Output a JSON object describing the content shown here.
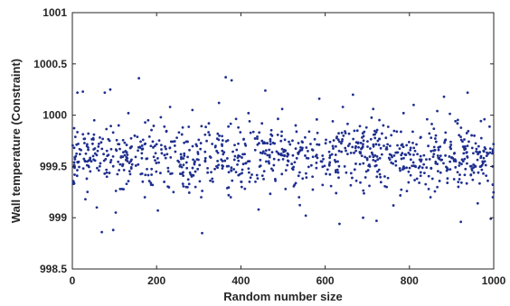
{
  "chart_data": {
    "type": "scatter",
    "title": "",
    "xlabel": "Random number size",
    "ylabel": "Wall temperature (Constraint)",
    "xlim": [
      0,
      1000
    ],
    "ylim": [
      998.5,
      1001
    ],
    "x_ticks": [
      0,
      200,
      400,
      600,
      800,
      1000
    ],
    "y_ticks": [
      998.5,
      999,
      999.5,
      1000,
      1000.5,
      1001
    ],
    "x_tick_labels": [
      "0",
      "200",
      "400",
      "600",
      "800",
      "1000"
    ],
    "y_tick_labels": [
      "998.5",
      "999",
      "999.5",
      "1000",
      "1000.5",
      "1001"
    ],
    "grid": false,
    "series": [
      {
        "marker_color": "#1f2f8f",
        "point_count": 1000,
        "distribution": "approximately uniform between 998.85 and 1000.35, concentrated 999.2–1000.0",
        "points": [
          [
            3,
            999.35
          ],
          [
            12,
            1000.22
          ],
          [
            18,
            999.62
          ],
          [
            25,
            1000.23
          ],
          [
            31,
            999.18
          ],
          [
            38,
            999.82
          ],
          [
            45,
            999.55
          ],
          [
            52,
            999.95
          ],
          [
            58,
            999.1
          ],
          [
            63,
            999.72
          ],
          [
            70,
            998.86
          ],
          [
            77,
            1000.22
          ],
          [
            82,
            999.4
          ],
          [
            90,
            1000.25
          ],
          [
            97,
            998.88
          ],
          [
            103,
            999.05
          ],
          [
            110,
            999.9
          ],
          [
            118,
            999.28
          ],
          [
            126,
            999.65
          ],
          [
            133,
            1000.02
          ],
          [
            140,
            999.48
          ],
          [
            148,
            999.8
          ],
          [
            158,
            1000.36
          ],
          [
            165,
            999.58
          ],
          [
            172,
            999.2
          ],
          [
            180,
            999.95
          ],
          [
            188,
            999.42
          ],
          [
            196,
            999.7
          ],
          [
            203,
            999.07
          ],
          [
            210,
            999.98
          ],
          [
            218,
            999.35
          ],
          [
            225,
            999.62
          ],
          [
            232,
            1000.08
          ],
          [
            240,
            999.25
          ],
          [
            248,
            999.78
          ],
          [
            255,
            999.5
          ],
          [
            262,
            999.88
          ],
          [
            270,
            999.3
          ],
          [
            278,
            999.66
          ],
          [
            285,
            1000.05
          ],
          [
            292,
            999.45
          ],
          [
            300,
            999.76
          ],
          [
            308,
            998.85
          ],
          [
            316,
            999.58
          ],
          [
            324,
            999.92
          ],
          [
            332,
            999.38
          ],
          [
            340,
            999.7
          ],
          [
            348,
            1000.12
          ],
          [
            356,
            999.48
          ],
          [
            364,
            1000.37
          ],
          [
            371,
            999.22
          ],
          [
            378,
            1000.34
          ],
          [
            386,
            999.6
          ],
          [
            394,
            999.88
          ],
          [
            402,
            999.3
          ],
          [
            410,
            999.72
          ],
          [
            418,
            1000.02
          ],
          [
            426,
            999.42
          ],
          [
            434,
            999.66
          ],
          [
            442,
            999.08
          ],
          [
            450,
            999.92
          ],
          [
            458,
            1000.24
          ],
          [
            466,
            999.55
          ],
          [
            474,
            999.8
          ],
          [
            482,
            999.36
          ],
          [
            490,
            999.62
          ],
          [
            498,
            1000.06
          ],
          [
            506,
            999.28
          ],
          [
            514,
            999.74
          ],
          [
            522,
            999.48
          ],
          [
            530,
            999.9
          ],
          [
            538,
            999.2
          ],
          [
            546,
            999.68
          ],
          [
            554,
            999.02
          ],
          [
            562,
            999.84
          ],
          [
            570,
            999.4
          ],
          [
            578,
            999.6
          ],
          [
            586,
            1000.16
          ],
          [
            594,
            999.32
          ],
          [
            602,
            999.76
          ],
          [
            610,
            999.52
          ],
          [
            618,
            999.94
          ],
          [
            626,
            999.24
          ],
          [
            634,
            998.94
          ],
          [
            642,
            1000.08
          ],
          [
            650,
            999.44
          ],
          [
            658,
            999.72
          ],
          [
            666,
            1000.2
          ],
          [
            674,
            999.36
          ],
          [
            682,
            999.64
          ],
          [
            690,
            999.0
          ],
          [
            698,
            999.88
          ],
          [
            706,
            999.5
          ],
          [
            714,
            1000.06
          ],
          [
            722,
            998.97
          ],
          [
            730,
            999.58
          ],
          [
            738,
            999.9
          ],
          [
            746,
            999.3
          ],
          [
            754,
            999.7
          ],
          [
            762,
            999.12
          ],
          [
            770,
            999.84
          ],
          [
            778,
            999.46
          ],
          [
            786,
            1000.02
          ],
          [
            794,
            999.26
          ],
          [
            802,
            999.66
          ],
          [
            810,
            1000.1
          ],
          [
            818,
            999.38
          ],
          [
            826,
            999.78
          ],
          [
            834,
            999.52
          ],
          [
            842,
            999.96
          ],
          [
            850,
            999.2
          ],
          [
            858,
            999.62
          ],
          [
            866,
            1000.04
          ],
          [
            874,
            999.44
          ],
          [
            882,
            1000.18
          ],
          [
            890,
            999.34
          ],
          [
            898,
            999.74
          ],
          [
            906,
            999.56
          ],
          [
            914,
            999.92
          ],
          [
            922,
            998.96
          ],
          [
            930,
            999.68
          ],
          [
            938,
            1000.22
          ],
          [
            946,
            999.42
          ],
          [
            954,
            999.8
          ],
          [
            962,
            999.14
          ],
          [
            970,
            999.6
          ],
          [
            978,
            999.96
          ],
          [
            986,
            999.36
          ],
          [
            993,
            998.99
          ],
          [
            998,
            999.2
          ]
        ]
      }
    ]
  }
}
